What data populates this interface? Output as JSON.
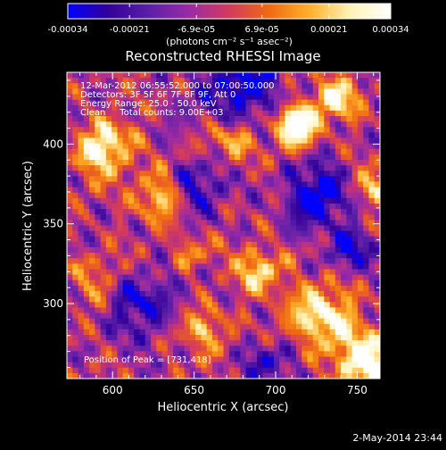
{
  "colorbar": {
    "tick_labels": [
      "-0.00034",
      "-0.00021",
      "-6.9e-05",
      "6.9e-05",
      "0.00021",
      "0.00034"
    ],
    "tick_values": [
      -0.00034,
      -0.00021,
      -6.9e-05,
      6.9e-05,
      0.00021,
      0.00034
    ],
    "range": [
      -0.00034,
      0.00034
    ],
    "unit_label": "(photons cm⁻² s⁻¹ asec⁻²)",
    "colormap": [
      "#0000ff",
      "#33009a",
      "#5a1fa8",
      "#9a2aa5",
      "#d43a5d",
      "#f06b12",
      "#ffb12b",
      "#fff3b8",
      "#ffffff"
    ]
  },
  "chart_data": {
    "type": "heatmap",
    "title": "Reconstructed RHESSI Image",
    "xlabel": "Heliocentric X (arcsec)",
    "ylabel": "Heliocentric Y (arcsec)",
    "xlim": [
      572,
      764
    ],
    "ylim": [
      253,
      445
    ],
    "xticks": [
      600,
      650,
      700,
      750
    ],
    "yticks": [
      300,
      350,
      400
    ],
    "annotations": [
      "12-Mar-2012 06:55:52.000 to 07:00:50.000",
      "Detectors: 3F 5F 6F 7F 8F 9F, Att 0",
      "Energy Range: 25.0 - 50.0 keV",
      "Clean     Total counts: 9.00E+03"
    ],
    "peak_label": "Position of Peak = [731,418]",
    "peak": [
      731,
      418
    ],
    "grid": false,
    "image_description": "mottled map of positive (red-yellow-white) and negative (purple-blue) intensity blobs across the field"
  },
  "footer": {
    "date": "2-May-2014 23:44"
  }
}
